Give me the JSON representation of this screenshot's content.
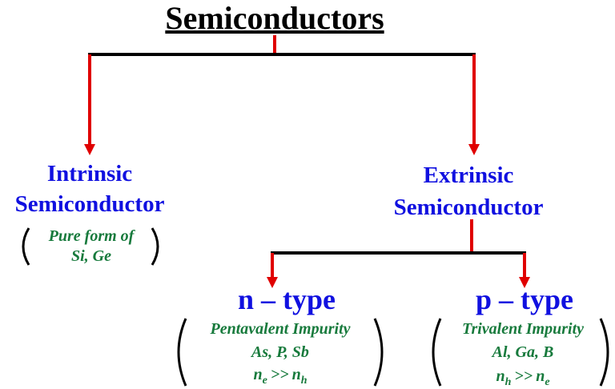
{
  "header": {
    "title": "Semiconductors"
  },
  "nodes": [
    {
      "label": [
        "Intrinsic",
        "Semiconductor"
      ],
      "note": [
        "Pure form of",
        "Si, Ge"
      ]
    },
    {
      "label": [
        "Extrinsic",
        "Semiconductor"
      ]
    },
    {
      "label": [
        "n – type"
      ],
      "note": [
        "Pentavalent Impurity",
        "As, P, Sb"
      ],
      "relation": {
        "lhs": "n",
        "lhs_sub": "e",
        "op": ">>",
        "rhs": "n",
        "rhs_sub": "h"
      }
    },
    {
      "label": [
        "p – type"
      ],
      "note": [
        "Trivalent Impurity",
        "Al, Ga, B"
      ],
      "relation": {
        "lhs": "n",
        "lhs_sub": "h",
        "op": ">>",
        "rhs": "n",
        "rhs_sub": "e"
      }
    }
  ]
}
